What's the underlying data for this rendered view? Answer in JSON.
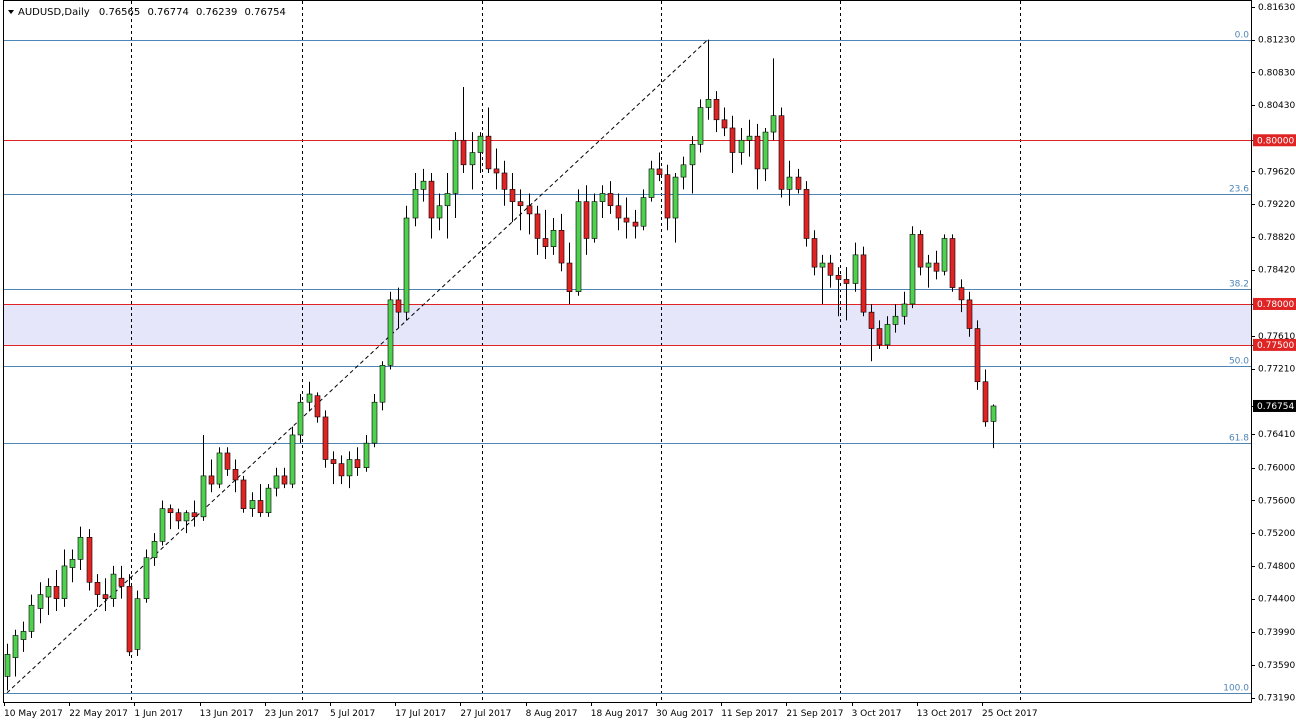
{
  "header": {
    "symbol_label": "AUDUSD,Daily",
    "open": "0.76565",
    "high": "0.76774",
    "low": "0.76239",
    "close": "0.76754",
    "menu_icon": "triangle-down-icon"
  },
  "colors": {
    "background": "#ffffff",
    "bull_candle": "#4fd14f",
    "bear_candle": "#e02424",
    "wick": "#000000",
    "fib_line": "#4f86b8",
    "support_line": "#e02424",
    "zone_fill": "#e6e6fa",
    "grid": "#000000"
  },
  "chart_data": {
    "type": "candlestick",
    "symbol": "AUDUSD",
    "timeframe": "Daily",
    "ylim": [
      0.7315,
      0.8164
    ],
    "y_ticks": [
      "0.81630",
      "0.81230",
      "0.80830",
      "0.80430",
      "0.80000",
      "0.79620",
      "0.79220",
      "0.78820",
      "0.78420",
      "0.78000",
      "0.77610",
      "0.77500",
      "0.77210",
      "0.76754",
      "0.76410",
      "0.76000",
      "0.75600",
      "0.75200",
      "0.74800",
      "0.74400",
      "0.73990",
      "0.73590",
      "0.73190"
    ],
    "x_ticks": [
      "10 May 2017",
      "22 May 2017",
      "1 Jun 2017",
      "13 Jun 2017",
      "23 Jun 2017",
      "5 Jul 2017",
      "17 Jul 2017",
      "27 Jul 2017",
      "8 Aug 2017",
      "18 Aug 2017",
      "30 Aug 2017",
      "11 Sep 2017",
      "21 Sep 2017",
      "3 Oct 2017",
      "13 Oct 2017",
      "25 Oct 2017"
    ],
    "x_tick_index": [
      0,
      8,
      16,
      24,
      32,
      40,
      48,
      56,
      64,
      72,
      80,
      88,
      96,
      104,
      112,
      120
    ],
    "vertical_grid_index": [
      16,
      37,
      59,
      81,
      103,
      125
    ],
    "fibonacci": {
      "high": 0.8123,
      "low": 0.7325,
      "levels": [
        {
          "label": "0.0",
          "value": 0.8123
        },
        {
          "label": "23.6",
          "value": 0.79347
        },
        {
          "label": "38.2",
          "value": 0.78182
        },
        {
          "label": "50.0",
          "value": 0.7724
        },
        {
          "label": "61.8",
          "value": 0.76298
        },
        {
          "label": "100.0",
          "value": 0.7325
        }
      ]
    },
    "horizontal_lines": [
      {
        "label": "0.80000",
        "value": 0.8
      },
      {
        "label": "0.78000",
        "value": 0.78
      },
      {
        "label": "0.77500",
        "value": 0.775
      }
    ],
    "zone": {
      "from": 0.775,
      "to": 0.78
    },
    "trendline": {
      "from_index": 0,
      "from_value": 0.7325,
      "to_index": 86,
      "to_value": 0.8123
    },
    "last_price": "0.76754",
    "candles": [
      {
        "o": 0.7345,
        "h": 0.7385,
        "l": 0.7328,
        "c": 0.7372
      },
      {
        "o": 0.7368,
        "h": 0.7402,
        "l": 0.7345,
        "c": 0.7395
      },
      {
        "o": 0.739,
        "h": 0.7412,
        "l": 0.7375,
        "c": 0.74
      },
      {
        "o": 0.74,
        "h": 0.7445,
        "l": 0.7392,
        "c": 0.7432
      },
      {
        "o": 0.7428,
        "h": 0.746,
        "l": 0.741,
        "c": 0.7445
      },
      {
        "o": 0.7442,
        "h": 0.7465,
        "l": 0.742,
        "c": 0.7455
      },
      {
        "o": 0.7455,
        "h": 0.7475,
        "l": 0.7425,
        "c": 0.744
      },
      {
        "o": 0.744,
        "h": 0.75,
        "l": 0.743,
        "c": 0.748
      },
      {
        "o": 0.7478,
        "h": 0.75,
        "l": 0.746,
        "c": 0.7488
      },
      {
        "o": 0.7488,
        "h": 0.7528,
        "l": 0.7475,
        "c": 0.7515
      },
      {
        "o": 0.7515,
        "h": 0.7525,
        "l": 0.745,
        "c": 0.746
      },
      {
        "o": 0.746,
        "h": 0.747,
        "l": 0.743,
        "c": 0.7445
      },
      {
        "o": 0.7445,
        "h": 0.7465,
        "l": 0.7425,
        "c": 0.744
      },
      {
        "o": 0.744,
        "h": 0.748,
        "l": 0.743,
        "c": 0.747
      },
      {
        "o": 0.7465,
        "h": 0.748,
        "l": 0.744,
        "c": 0.7455
      },
      {
        "o": 0.7455,
        "h": 0.747,
        "l": 0.737,
        "c": 0.7375
      },
      {
        "o": 0.7378,
        "h": 0.745,
        "l": 0.737,
        "c": 0.744
      },
      {
        "o": 0.744,
        "h": 0.75,
        "l": 0.7435,
        "c": 0.749
      },
      {
        "o": 0.749,
        "h": 0.752,
        "l": 0.748,
        "c": 0.751
      },
      {
        "o": 0.751,
        "h": 0.756,
        "l": 0.7505,
        "c": 0.755
      },
      {
        "o": 0.755,
        "h": 0.7555,
        "l": 0.7525,
        "c": 0.7545
      },
      {
        "o": 0.7545,
        "h": 0.755,
        "l": 0.7525,
        "c": 0.7535
      },
      {
        "o": 0.7535,
        "h": 0.7548,
        "l": 0.752,
        "c": 0.7545
      },
      {
        "o": 0.7545,
        "h": 0.756,
        "l": 0.7528,
        "c": 0.754
      },
      {
        "o": 0.754,
        "h": 0.764,
        "l": 0.7535,
        "c": 0.759
      },
      {
        "o": 0.759,
        "h": 0.761,
        "l": 0.757,
        "c": 0.758
      },
      {
        "o": 0.758,
        "h": 0.7625,
        "l": 0.7575,
        "c": 0.7618
      },
      {
        "o": 0.7618,
        "h": 0.7625,
        "l": 0.759,
        "c": 0.7598
      },
      {
        "o": 0.7598,
        "h": 0.761,
        "l": 0.757,
        "c": 0.7585
      },
      {
        "o": 0.7585,
        "h": 0.759,
        "l": 0.7545,
        "c": 0.755
      },
      {
        "o": 0.755,
        "h": 0.757,
        "l": 0.754,
        "c": 0.756
      },
      {
        "o": 0.756,
        "h": 0.758,
        "l": 0.754,
        "c": 0.7545
      },
      {
        "o": 0.7545,
        "h": 0.758,
        "l": 0.754,
        "c": 0.7575
      },
      {
        "o": 0.7575,
        "h": 0.76,
        "l": 0.7565,
        "c": 0.759
      },
      {
        "o": 0.759,
        "h": 0.76,
        "l": 0.7575,
        "c": 0.758
      },
      {
        "o": 0.758,
        "h": 0.765,
        "l": 0.7575,
        "c": 0.764
      },
      {
        "o": 0.764,
        "h": 0.769,
        "l": 0.763,
        "c": 0.768
      },
      {
        "o": 0.768,
        "h": 0.7705,
        "l": 0.767,
        "c": 0.769
      },
      {
        "o": 0.7688,
        "h": 0.7692,
        "l": 0.7655,
        "c": 0.7662
      },
      {
        "o": 0.7662,
        "h": 0.767,
        "l": 0.76,
        "c": 0.761
      },
      {
        "o": 0.761,
        "h": 0.762,
        "l": 0.758,
        "c": 0.7605
      },
      {
        "o": 0.7605,
        "h": 0.7615,
        "l": 0.758,
        "c": 0.759
      },
      {
        "o": 0.759,
        "h": 0.762,
        "l": 0.7575,
        "c": 0.761
      },
      {
        "o": 0.761,
        "h": 0.7625,
        "l": 0.759,
        "c": 0.76
      },
      {
        "o": 0.76,
        "h": 0.764,
        "l": 0.7595,
        "c": 0.763
      },
      {
        "o": 0.763,
        "h": 0.769,
        "l": 0.7625,
        "c": 0.768
      },
      {
        "o": 0.768,
        "h": 0.773,
        "l": 0.767,
        "c": 0.7725
      },
      {
        "o": 0.7725,
        "h": 0.7815,
        "l": 0.772,
        "c": 0.7805
      },
      {
        "o": 0.7805,
        "h": 0.782,
        "l": 0.777,
        "c": 0.779
      },
      {
        "o": 0.779,
        "h": 0.792,
        "l": 0.778,
        "c": 0.7905
      },
      {
        "o": 0.7905,
        "h": 0.796,
        "l": 0.7895,
        "c": 0.794
      },
      {
        "o": 0.794,
        "h": 0.7965,
        "l": 0.7925,
        "c": 0.795
      },
      {
        "o": 0.795,
        "h": 0.796,
        "l": 0.788,
        "c": 0.7905
      },
      {
        "o": 0.7905,
        "h": 0.7935,
        "l": 0.789,
        "c": 0.792
      },
      {
        "o": 0.792,
        "h": 0.796,
        "l": 0.788,
        "c": 0.7935
      },
      {
        "o": 0.7935,
        "h": 0.801,
        "l": 0.7905,
        "c": 0.8
      },
      {
        "o": 0.8,
        "h": 0.8065,
        "l": 0.796,
        "c": 0.797
      },
      {
        "o": 0.797,
        "h": 0.801,
        "l": 0.794,
        "c": 0.7985
      },
      {
        "o": 0.7985,
        "h": 0.801,
        "l": 0.796,
        "c": 0.8005
      },
      {
        "o": 0.8005,
        "h": 0.804,
        "l": 0.796,
        "c": 0.7965
      },
      {
        "o": 0.7965,
        "h": 0.799,
        "l": 0.794,
        "c": 0.796
      },
      {
        "o": 0.796,
        "h": 0.7975,
        "l": 0.792,
        "c": 0.794
      },
      {
        "o": 0.794,
        "h": 0.796,
        "l": 0.79,
        "c": 0.7925
      },
      {
        "o": 0.7925,
        "h": 0.794,
        "l": 0.789,
        "c": 0.792
      },
      {
        "o": 0.792,
        "h": 0.7935,
        "l": 0.7885,
        "c": 0.791
      },
      {
        "o": 0.791,
        "h": 0.792,
        "l": 0.786,
        "c": 0.788
      },
      {
        "o": 0.788,
        "h": 0.7915,
        "l": 0.7855,
        "c": 0.787
      },
      {
        "o": 0.787,
        "h": 0.7905,
        "l": 0.786,
        "c": 0.789
      },
      {
        "o": 0.789,
        "h": 0.791,
        "l": 0.784,
        "c": 0.785
      },
      {
        "o": 0.785,
        "h": 0.7875,
        "l": 0.78,
        "c": 0.7815
      },
      {
        "o": 0.7815,
        "h": 0.794,
        "l": 0.781,
        "c": 0.7925
      },
      {
        "o": 0.7925,
        "h": 0.7945,
        "l": 0.786,
        "c": 0.788
      },
      {
        "o": 0.788,
        "h": 0.7935,
        "l": 0.7875,
        "c": 0.7925
      },
      {
        "o": 0.7925,
        "h": 0.7945,
        "l": 0.7905,
        "c": 0.7935
      },
      {
        "o": 0.7935,
        "h": 0.795,
        "l": 0.791,
        "c": 0.792
      },
      {
        "o": 0.792,
        "h": 0.7935,
        "l": 0.789,
        "c": 0.7905
      },
      {
        "o": 0.7905,
        "h": 0.793,
        "l": 0.788,
        "c": 0.79
      },
      {
        "o": 0.79,
        "h": 0.7915,
        "l": 0.788,
        "c": 0.7895
      },
      {
        "o": 0.7895,
        "h": 0.794,
        "l": 0.789,
        "c": 0.793
      },
      {
        "o": 0.793,
        "h": 0.7975,
        "l": 0.7925,
        "c": 0.7965
      },
      {
        "o": 0.7965,
        "h": 0.7985,
        "l": 0.795,
        "c": 0.7958
      },
      {
        "o": 0.7958,
        "h": 0.797,
        "l": 0.789,
        "c": 0.7905
      },
      {
        "o": 0.7905,
        "h": 0.796,
        "l": 0.7875,
        "c": 0.7955
      },
      {
        "o": 0.7955,
        "h": 0.798,
        "l": 0.794,
        "c": 0.797
      },
      {
        "o": 0.797,
        "h": 0.8005,
        "l": 0.7935,
        "c": 0.7995
      },
      {
        "o": 0.7995,
        "h": 0.805,
        "l": 0.7985,
        "c": 0.804
      },
      {
        "o": 0.804,
        "h": 0.8123,
        "l": 0.8025,
        "c": 0.805
      },
      {
        "o": 0.805,
        "h": 0.806,
        "l": 0.801,
        "c": 0.8025
      },
      {
        "o": 0.8025,
        "h": 0.804,
        "l": 0.8005,
        "c": 0.8015
      },
      {
        "o": 0.8015,
        "h": 0.803,
        "l": 0.796,
        "c": 0.7985
      },
      {
        "o": 0.7985,
        "h": 0.8015,
        "l": 0.797,
        "c": 0.8
      },
      {
        "o": 0.8,
        "h": 0.8025,
        "l": 0.798,
        "c": 0.8005
      },
      {
        "o": 0.8005,
        "h": 0.802,
        "l": 0.794,
        "c": 0.7965
      },
      {
        "o": 0.7965,
        "h": 0.8015,
        "l": 0.795,
        "c": 0.801
      },
      {
        "o": 0.801,
        "h": 0.81,
        "l": 0.8,
        "c": 0.803
      },
      {
        "o": 0.803,
        "h": 0.804,
        "l": 0.793,
        "c": 0.794
      },
      {
        "o": 0.794,
        "h": 0.7975,
        "l": 0.792,
        "c": 0.7955
      },
      {
        "o": 0.7955,
        "h": 0.7965,
        "l": 0.7935,
        "c": 0.794
      },
      {
        "o": 0.794,
        "h": 0.795,
        "l": 0.787,
        "c": 0.788
      },
      {
        "o": 0.788,
        "h": 0.789,
        "l": 0.7835,
        "c": 0.7845
      },
      {
        "o": 0.7845,
        "h": 0.786,
        "l": 0.78,
        "c": 0.785
      },
      {
        "o": 0.785,
        "h": 0.786,
        "l": 0.782,
        "c": 0.7835
      },
      {
        "o": 0.7835,
        "h": 0.7845,
        "l": 0.7785,
        "c": 0.783
      },
      {
        "o": 0.783,
        "h": 0.7845,
        "l": 0.778,
        "c": 0.7825
      },
      {
        "o": 0.7825,
        "h": 0.7875,
        "l": 0.7815,
        "c": 0.786
      },
      {
        "o": 0.786,
        "h": 0.787,
        "l": 0.7785,
        "c": 0.779
      },
      {
        "o": 0.779,
        "h": 0.78,
        "l": 0.773,
        "c": 0.777
      },
      {
        "o": 0.777,
        "h": 0.778,
        "l": 0.7745,
        "c": 0.775
      },
      {
        "o": 0.775,
        "h": 0.7785,
        "l": 0.7745,
        "c": 0.7775
      },
      {
        "o": 0.7775,
        "h": 0.78,
        "l": 0.7765,
        "c": 0.7785
      },
      {
        "o": 0.7785,
        "h": 0.7815,
        "l": 0.7775,
        "c": 0.78
      },
      {
        "o": 0.78,
        "h": 0.7895,
        "l": 0.7795,
        "c": 0.7885
      },
      {
        "o": 0.7885,
        "h": 0.789,
        "l": 0.7835,
        "c": 0.7845
      },
      {
        "o": 0.7845,
        "h": 0.786,
        "l": 0.782,
        "c": 0.785
      },
      {
        "o": 0.785,
        "h": 0.7865,
        "l": 0.783,
        "c": 0.784
      },
      {
        "o": 0.784,
        "h": 0.7885,
        "l": 0.7835,
        "c": 0.788
      },
      {
        "o": 0.788,
        "h": 0.7885,
        "l": 0.7815,
        "c": 0.782
      },
      {
        "o": 0.782,
        "h": 0.783,
        "l": 0.779,
        "c": 0.7805
      },
      {
        "o": 0.7805,
        "h": 0.7815,
        "l": 0.776,
        "c": 0.777
      },
      {
        "o": 0.777,
        "h": 0.778,
        "l": 0.7695,
        "c": 0.7705
      },
      {
        "o": 0.7705,
        "h": 0.772,
        "l": 0.765,
        "c": 0.7656
      },
      {
        "o": 0.76565,
        "h": 0.76774,
        "l": 0.76239,
        "c": 0.76754
      }
    ]
  }
}
